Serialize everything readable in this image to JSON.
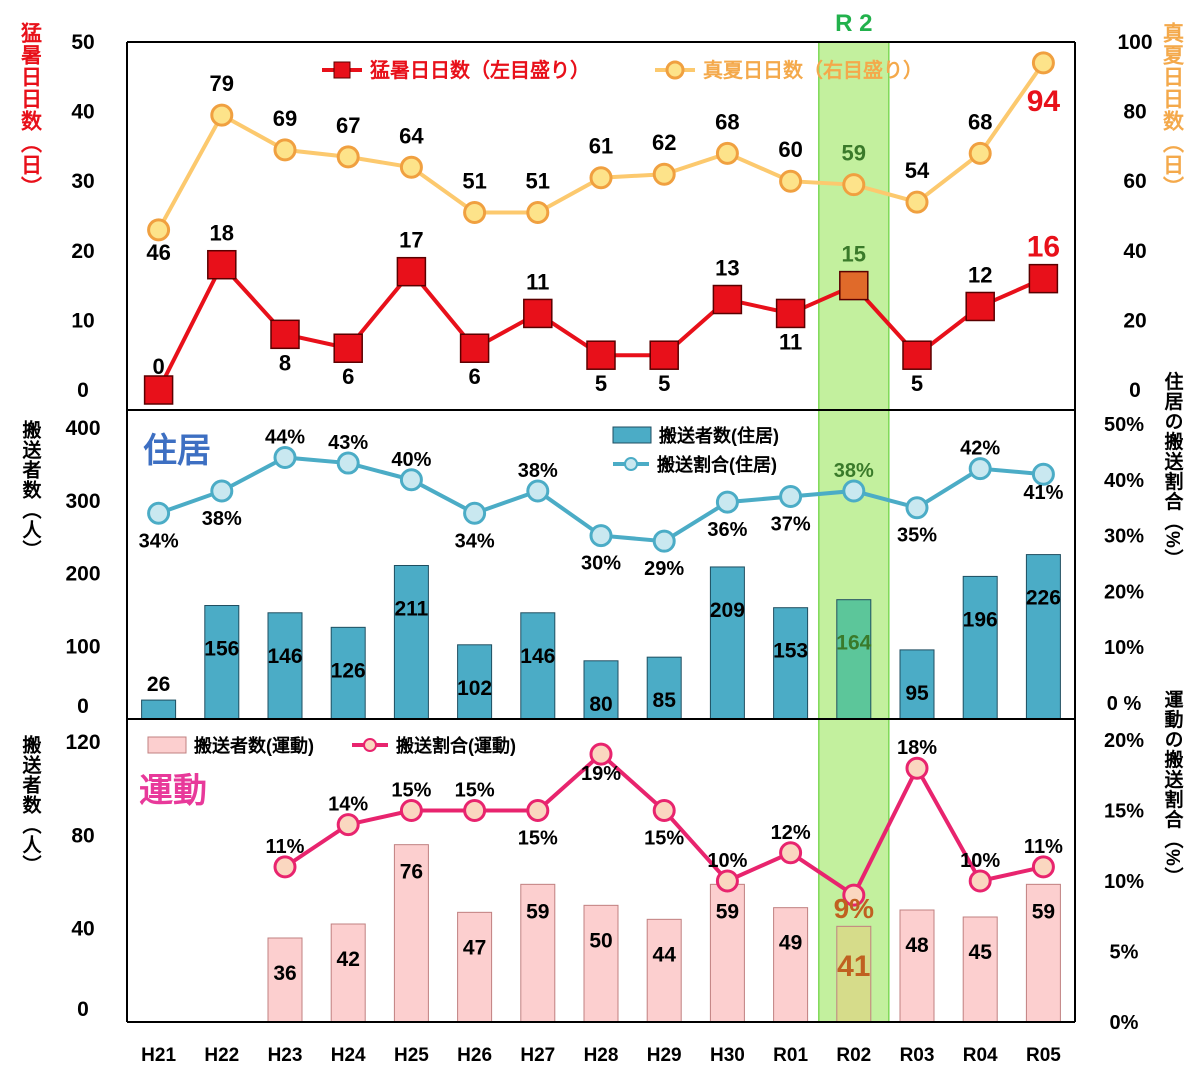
{
  "categories": [
    "H21",
    "H22",
    "H23",
    "H24",
    "H25",
    "H26",
    "H27",
    "H28",
    "H29",
    "H30",
    "R01",
    "R02",
    "R03",
    "R04",
    "R05"
  ],
  "highlight": {
    "label": "R 2",
    "category": "R02",
    "color": "#92e34f"
  },
  "chart_data": [
    {
      "type": "line",
      "panel": "top",
      "ylabel_left": "猛暑日日数（日）",
      "ylabel_right": "真夏日日数（日）",
      "ylim_left": [
        0,
        50
      ],
      "ylim_right": [
        0,
        100
      ],
      "yticks_left": [
        "0",
        "10",
        "20",
        "30",
        "40",
        "50"
      ],
      "yticks_right": [
        "0",
        "20",
        "40",
        "60",
        "80",
        "100"
      ],
      "legend_position": "top-center",
      "series": [
        {
          "name": "猛暑日日数（左目盛り）",
          "axis": "left",
          "color": "#e8101a",
          "marker": "square",
          "values": [
            0,
            18,
            8,
            6,
            17,
            6,
            11,
            5,
            5,
            13,
            11,
            15,
            5,
            12,
            16
          ]
        },
        {
          "name": "真夏日日数（右目盛り）",
          "axis": "right",
          "color": "#fcc96e",
          "marker": "circle",
          "values": [
            46,
            79,
            69,
            67,
            64,
            51,
            51,
            61,
            62,
            68,
            60,
            59,
            54,
            68,
            94
          ]
        }
      ]
    },
    {
      "type": "bar+line",
      "panel": "middle",
      "panel_label": "住居",
      "ylabel_left": "搬送者数（人）",
      "ylabel_right": "住居の搬送割合（%）",
      "ylim_left": [
        0,
        400
      ],
      "ylim_right": [
        0,
        50
      ],
      "yticks_left": [
        "0",
        "100",
        "200",
        "300",
        "400"
      ],
      "yticks_right": [
        "0 %",
        "10%",
        "20%",
        "30%",
        "40%",
        "50%"
      ],
      "legend_position": "top-right",
      "series": [
        {
          "name": "搬送者数(住居)",
          "kind": "bar",
          "axis": "left",
          "color": "#4bacc6",
          "values": [
            26,
            156,
            146,
            126,
            211,
            102,
            146,
            80,
            85,
            209,
            153,
            164,
            95,
            196,
            226
          ]
        },
        {
          "name": "搬送割合(住居)",
          "kind": "line",
          "axis": "right",
          "color": "#4bacc6",
          "unit": "%",
          "values": [
            34,
            38,
            44,
            43,
            40,
            34,
            38,
            30,
            29,
            36,
            37,
            38,
            35,
            42,
            41
          ]
        }
      ]
    },
    {
      "type": "bar+line",
      "panel": "bottom",
      "panel_label": "運動",
      "ylabel_left": "搬送者数（人）",
      "ylabel_right": "運動の搬送割合（%）",
      "ylim_left": [
        0,
        120
      ],
      "ylim_right": [
        0,
        20
      ],
      "yticks_left": [
        "0",
        "40",
        "80",
        "120"
      ],
      "yticks_right": [
        "0%",
        "5%",
        "10%",
        "15%",
        "20%"
      ],
      "legend_position": "top-left",
      "series": [
        {
          "name": "搬送者数(運動)",
          "kind": "bar",
          "axis": "left",
          "color": "#fccfcf",
          "values": [
            null,
            null,
            36,
            42,
            76,
            47,
            59,
            50,
            44,
            59,
            49,
            41,
            48,
            45,
            59
          ]
        },
        {
          "name": "搬送割合(運動)",
          "kind": "line",
          "axis": "right",
          "color": "#e8246e",
          "unit": "%",
          "values": [
            null,
            null,
            11,
            14,
            15,
            15,
            15,
            19,
            15,
            10,
            12,
            9,
            18,
            10,
            11
          ]
        }
      ]
    }
  ]
}
